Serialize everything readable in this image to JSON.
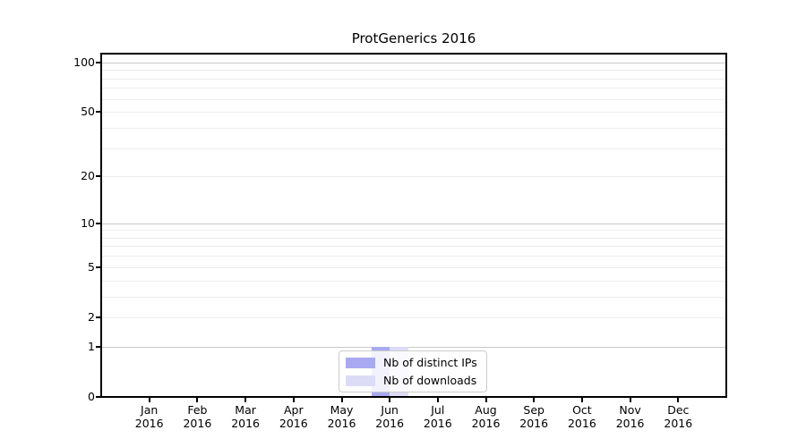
{
  "figure": {
    "background": "#ffffff"
  },
  "chart_data": {
    "type": "bar",
    "title": "ProtGenerics 2016",
    "categories": [
      "Jan",
      "Feb",
      "Mar",
      "Apr",
      "May",
      "Jun",
      "Jul",
      "Aug",
      "Sep",
      "Oct",
      "Nov",
      "Dec"
    ],
    "x_sub_label": "2016",
    "series": [
      {
        "name": "Nb of distinct IPs",
        "color": "#a9a9f2",
        "values": [
          0,
          0,
          0,
          0,
          0,
          1,
          0,
          0,
          0,
          0,
          0,
          0
        ]
      },
      {
        "name": "Nb of downloads",
        "color": "#dcdcf6",
        "values": [
          0,
          0,
          0,
          0,
          0,
          1,
          0,
          0,
          0,
          0,
          0,
          0
        ]
      }
    ],
    "yscale": "log1p",
    "ylim": [
      0,
      113
    ],
    "yticks_labeled": [
      0,
      1,
      2,
      5,
      10,
      20,
      50,
      100
    ],
    "grid_major_values": [
      1,
      10,
      100
    ],
    "grid_minor_values": [
      2,
      3,
      4,
      5,
      6,
      7,
      8,
      9,
      20,
      30,
      40,
      50,
      60,
      70,
      80,
      90
    ],
    "grid": true,
    "legend_position": "bottom-center",
    "colors": {
      "grid_major": "#c9c9c9",
      "grid_minor": "#ededed",
      "spine": "#000000",
      "text": "#000000"
    }
  }
}
